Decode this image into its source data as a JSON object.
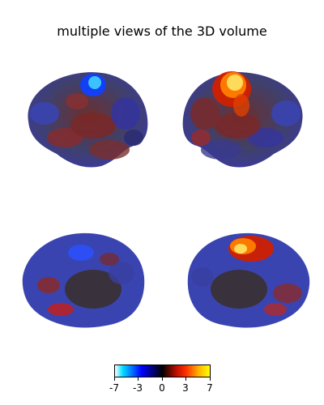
{
  "title": "multiple views of the 3D volume",
  "colorbar": {
    "ticks": [
      "-7",
      "-3",
      "0",
      "3",
      "7"
    ],
    "colors": [
      "#ffffff",
      "#00e0ff",
      "#0000ff",
      "#000000",
      "#c01000",
      "#ff3000",
      "#ffb000",
      "#ffff00"
    ]
  }
}
